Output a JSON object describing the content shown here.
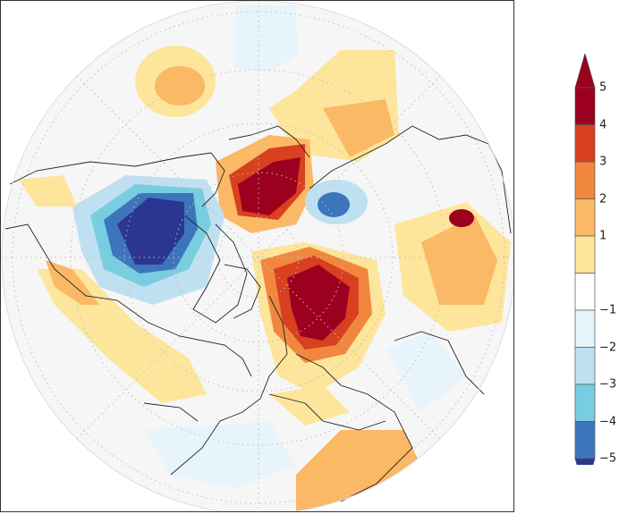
{
  "legend": {
    "bins": [
      {
        "color": "#ffffff"
      },
      {
        "color": "#fde59c"
      },
      {
        "color": "#fbb865"
      },
      {
        "color": "#f1873f"
      },
      {
        "color": "#d8401f"
      },
      {
        "color": "#9c001f"
      }
    ],
    "cold_bins": [
      {
        "color": "#e8f4fb"
      },
      {
        "color": "#bfe0f0"
      },
      {
        "color": "#78cde0"
      },
      {
        "color": "#3d75bd"
      },
      {
        "color": "#2a3690"
      }
    ],
    "over_color": "#9c001f",
    "under_color": "#2a3690",
    "ticks": [
      "5",
      "4",
      "3",
      "2",
      "1",
      "−1",
      "−2",
      "−3",
      "−4",
      "−5"
    ]
  },
  "map": {
    "projection": "north-polar-stereographic",
    "gridlines": "dotted",
    "field": "anomaly"
  }
}
